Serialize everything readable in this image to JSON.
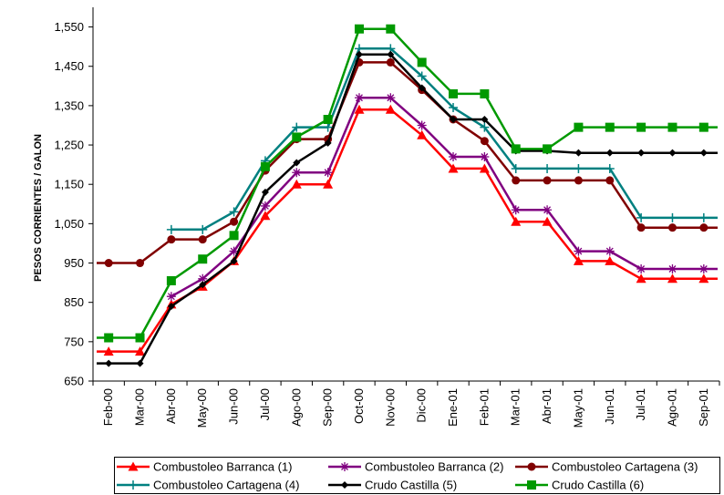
{
  "chart_data": {
    "type": "line",
    "title": "",
    "xlabel": "",
    "ylabel": "PESOS CORRIENTES / GALON",
    "ylim": [
      650,
      1600
    ],
    "yticks": [
      650,
      750,
      850,
      950,
      1050,
      1150,
      1250,
      1350,
      1450,
      1550
    ],
    "ytick_labels": [
      "650",
      "750",
      "850",
      "950",
      "1,050",
      "1,150",
      "1,250",
      "1,350",
      "1,450",
      "1,550"
    ],
    "step": true,
    "grid": false,
    "legend_position": "bottom",
    "categories": [
      "Feb-00",
      "Mar-00",
      "Abr-00",
      "May-00",
      "Jun-00",
      "Jul-00",
      "Ago-00",
      "Sep-00",
      "Oct-00",
      "Nov-00",
      "Dic-00",
      "Ene-01",
      "Feb-01",
      "Mar-01",
      "Abr-01",
      "May-01",
      "Jun-01",
      "Jul-01",
      "Ago-01",
      "Sep-01"
    ],
    "series": [
      {
        "name": "Combustoleo Barranca (1)",
        "color": "#ff0000",
        "marker": "triangle",
        "values": [
          725,
          725,
          845,
          890,
          955,
          1070,
          1150,
          1150,
          1340,
          1340,
          1275,
          1190,
          1190,
          1055,
          1055,
          955,
          955,
          910,
          910,
          910
        ]
      },
      {
        "name": "Combustoleo Barranca (2)",
        "color": "#800080",
        "marker": "asterisk",
        "values": [
          null,
          null,
          865,
          910,
          980,
          1095,
          1180,
          1180,
          1370,
          1370,
          1300,
          1220,
          1220,
          1085,
          1085,
          980,
          980,
          935,
          935,
          935
        ]
      },
      {
        "name": "Combustoleo Cartagena (3)",
        "color": "#800000",
        "marker": "circle",
        "values": [
          950,
          950,
          1010,
          1010,
          1055,
          1185,
          1265,
          1265,
          1460,
          1460,
          1390,
          1315,
          1260,
          1160,
          1160,
          1160,
          1160,
          1040,
          1040,
          1040
        ]
      },
      {
        "name": "Combustoleo Cartagena (4)",
        "color": "#008080",
        "marker": "plus",
        "values": [
          null,
          null,
          1035,
          1035,
          1080,
          1210,
          1295,
          1295,
          1495,
          1495,
          1425,
          1345,
          1295,
          1190,
          1190,
          1190,
          1190,
          1065,
          1065,
          1065
        ]
      },
      {
        "name": "Crudo Castilla (5)",
        "color": "#000000",
        "marker": "diamond",
        "values": [
          695,
          695,
          840,
          895,
          955,
          1130,
          1205,
          1255,
          1480,
          1480,
          1395,
          1315,
          1315,
          1235,
          1235,
          1230,
          1230,
          1230,
          1230,
          1230
        ]
      },
      {
        "name": "Crudo Castilla (6)",
        "color": "#009900",
        "marker": "square",
        "values": [
          760,
          760,
          905,
          960,
          1020,
          1195,
          1270,
          1315,
          1545,
          1545,
          1460,
          1380,
          1380,
          1240,
          1240,
          1295,
          1295,
          1295,
          1295,
          1295
        ]
      }
    ]
  }
}
